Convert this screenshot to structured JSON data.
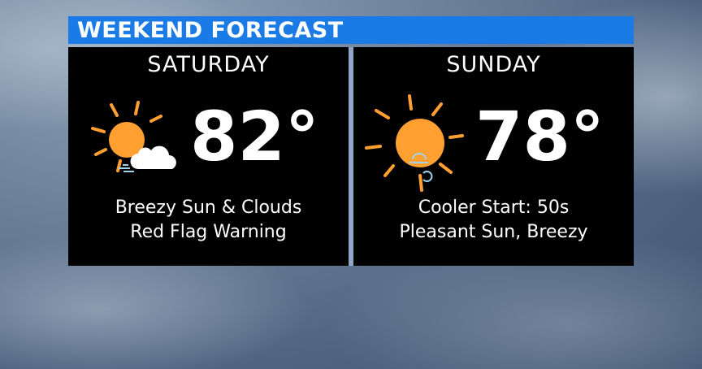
{
  "header": {
    "title": "WEEKEND FORECAST",
    "color": "#1b7be6"
  },
  "days": [
    {
      "name": "SATURDAY",
      "temp": "82°",
      "icon": "sun-cloud-wind-icon",
      "lines": [
        "Breezy Sun & Clouds",
        "Red Flag Warning"
      ]
    },
    {
      "name": "SUNDAY",
      "temp": "78°",
      "icon": "sun-wind-icon",
      "lines": [
        "Cooler Start: 50s",
        "Pleasant Sun, Breezy"
      ]
    }
  ],
  "colors": {
    "sun": "#ffa030",
    "panel": "#000000"
  }
}
